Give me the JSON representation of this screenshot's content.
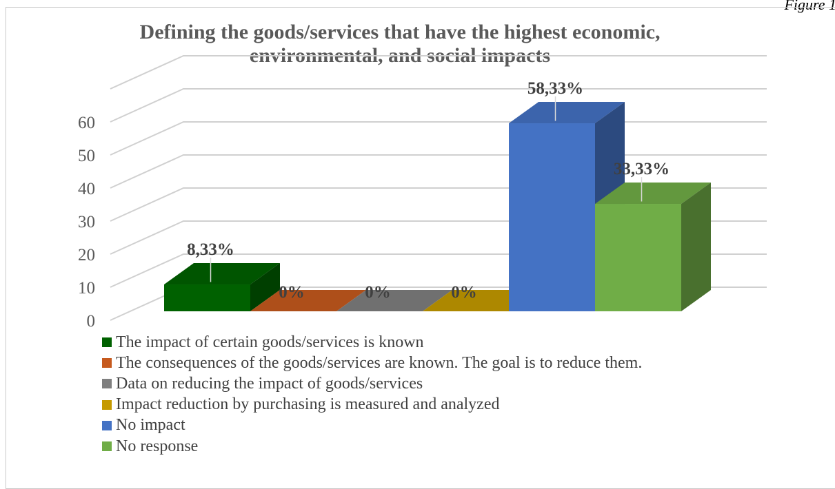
{
  "figure_caption": "Figure 1",
  "chart_data": {
    "type": "bar",
    "title": "Defining the goods/services that have the highest economic, environmental, and social impacts",
    "categories": [
      "The impact of certain goods/services is known",
      "The consequences of the goods/services are known. The goal is to reduce them.",
      "Data on reducing the impact of goods/services",
      "Impact reduction by purchasing is measured and analyzed",
      "No impact",
      "No response"
    ],
    "values": [
      8.33,
      0,
      0,
      0,
      58.33,
      33.33
    ],
    "data_labels": [
      "8,33%",
      "0%",
      "0%",
      "0%",
      "58,33%",
      "33,33%"
    ],
    "colors": [
      "#006100",
      "#c65a1e",
      "#7f7f7f",
      "#c59a00",
      "#4472c4",
      "#70ad47"
    ],
    "yticks": [
      0,
      10,
      20,
      30,
      40,
      50,
      60
    ],
    "ylim": [
      0,
      70
    ],
    "grid": true,
    "legend_position": "bottom-left",
    "style": "3d"
  }
}
